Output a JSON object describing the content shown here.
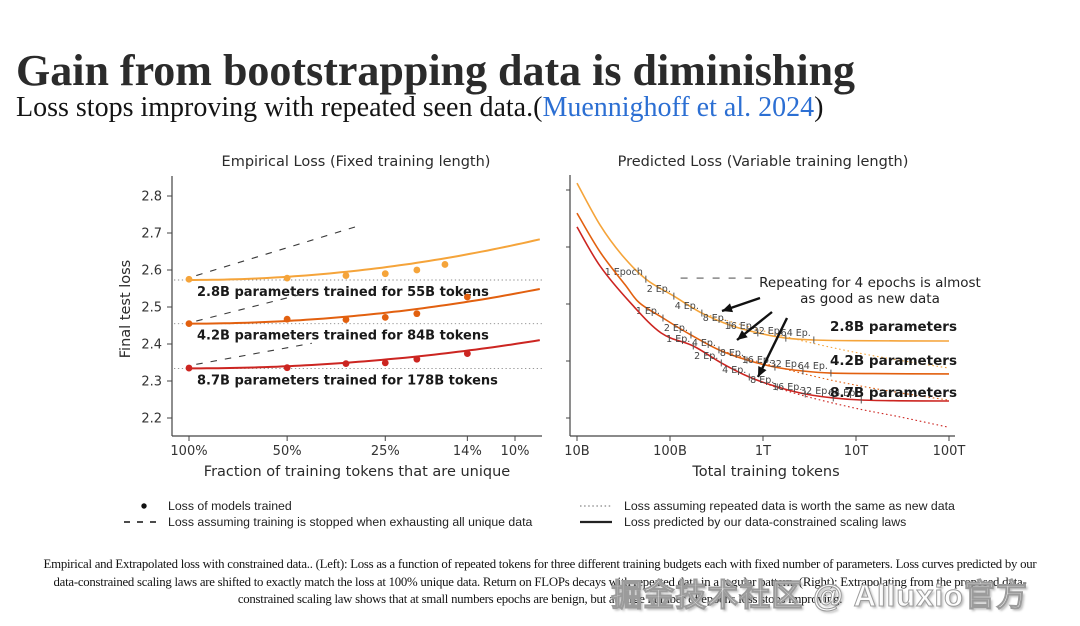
{
  "slide": {
    "title": "Gain from bootstrapping data is diminishing",
    "subtitle_prefix": "Loss stops improving with repeated seen data.(",
    "subtitle_link": "Muennighoff et al. 2024",
    "subtitle_suffix": ")",
    "link_color": "#2c6fd3"
  },
  "legend": {
    "items": [
      {
        "marker": "dot",
        "label": "Loss of models trained"
      },
      {
        "marker": "dashed",
        "label": "Loss assuming training is stopped when exhausting all unique data"
      },
      {
        "marker": "dotted",
        "label": "Loss assuming repeated data is worth the same as new data"
      },
      {
        "marker": "solid",
        "label": "Loss predicted by our data-constrained scaling laws"
      }
    ]
  },
  "caption": {
    "lines": [
      "Empirical and Extrapolated loss with constrained data.. (Left): Loss as a function of repeated tokens for three different training budgets each with fixed number of parameters. Loss curves predicted by our",
      "data-constrained scaling laws are shifted to exactly match the loss at 100% unique data. Return on FLOPs decays with repeated data in a regular pattern. (Right): Extrapolating from the proposed data-",
      "constrained scaling law shows that at small numbers epochs are benign, but at large number of epochs loss stops improving."
    ]
  },
  "watermark": "掘金技术社区 @ Alluxio官方",
  "chart_data": [
    {
      "type": "line",
      "title": "Empirical Loss (Fixed training length)",
      "xlabel": "Fraction of training tokens that are unique",
      "ylabel": "Final test loss",
      "x_scale": "log, reversed (100% -> ~8%)",
      "xlim": [
        100,
        8.4
      ],
      "ylim": [
        2.15,
        2.85
      ],
      "grid": false,
      "x_ticks": [
        {
          "label": "100%",
          "value": 100
        },
        {
          "label": "50%",
          "value": 50
        },
        {
          "label": "25%",
          "value": 25
        },
        {
          "label": "14%",
          "value": 14
        },
        {
          "label": "10%",
          "value": 10
        }
      ],
      "y_ticks": [
        2.2,
        2.3,
        2.4,
        2.5,
        2.6,
        2.7,
        2.8
      ],
      "series": [
        {
          "name": "2.8B",
          "annotation": "2.8B parameters trained for 55B tokens",
          "color": "#F5A43A",
          "baseline": 2.573,
          "curve_k": 0.095,
          "points": [
            [
              100,
              2.575
            ],
            [
              50,
              2.578
            ],
            [
              33,
              2.585
            ],
            [
              25,
              2.59
            ],
            [
              20,
              2.6
            ],
            [
              16.4,
              2.615
            ]
          ],
          "dashed_line": {
            "from": [
              95,
              2.585
            ],
            "to": [
              30,
              2.72
            ]
          }
        },
        {
          "name": "4.2B",
          "annotation": "4.2B parameters trained for 84B tokens",
          "color": "#E2600F",
          "baseline": 2.455,
          "curve_k": 0.081,
          "points": [
            [
              100,
              2.455
            ],
            [
              50,
              2.467
            ],
            [
              33,
              2.466
            ],
            [
              25,
              2.472
            ],
            [
              20,
              2.482
            ],
            [
              14,
              2.527
            ]
          ],
          "dashed_line": {
            "from": [
              95,
              2.462
            ],
            "to": [
              45,
              2.535
            ]
          }
        },
        {
          "name": "8.7B",
          "annotation": "8.7B parameters trained for 178B tokens",
          "color": "#CC2521",
          "baseline": 2.334,
          "curve_k": 0.066,
          "points": [
            [
              100,
              2.335
            ],
            [
              50,
              2.336
            ],
            [
              33,
              2.347
            ],
            [
              25,
              2.349
            ],
            [
              20,
              2.359
            ],
            [
              14,
              2.374
            ]
          ],
          "dashed_line": {
            "from": [
              95,
              2.345
            ],
            "to": [
              42,
              2.402
            ]
          }
        }
      ]
    },
    {
      "type": "line",
      "title": "Predicted Loss (Variable training length)",
      "xlabel": "Total training tokens",
      "x_scale": "log",
      "x_unit": "billions of tokens",
      "y_axis": "unlabeled; values below are relative height (0 = axis bottom, 1 = top)",
      "x_ticks": [
        {
          "label": "10B",
          "value": 10
        },
        {
          "label": "100B",
          "value": 100
        },
        {
          "label": "1T",
          "value": 1000
        },
        {
          "label": "10T",
          "value": 10000
        },
        {
          "label": "100T",
          "value": 100000
        }
      ],
      "annotation": {
        "lines": [
          "Repeating for 4 epochs is almost",
          "as good as new data"
        ]
      },
      "dashed_ref_line": {
        "from_tokens": 130,
        "to_tokens": 900,
        "y": 0.605
      },
      "series": [
        {
          "name": "2.8B parameters",
          "color": "#F5A43A",
          "unique_tokens": "55B",
          "label_y": 0.421,
          "curve": [
            [
              10,
              0.969
            ],
            [
              17.7,
              0.808
            ],
            [
              30.5,
              0.693
            ],
            [
              55,
              0.601
            ],
            [
              110,
              0.536
            ],
            [
              220,
              0.471
            ],
            [
              440,
              0.425
            ],
            [
              880,
              0.395
            ],
            [
              1760,
              0.375
            ],
            [
              3520,
              0.368
            ],
            [
              10000,
              0.365
            ],
            [
              100000,
              0.364
            ]
          ],
          "epoch_markers": [
            {
              "label": "1 Epoch",
              "tokens": 55,
              "y": 0.601
            },
            {
              "label": "2 Ep.",
              "tokens": 110,
              "y": 0.536
            },
            {
              "label": "4 Ep.",
              "tokens": 220,
              "y": 0.471
            },
            {
              "label": "8 Ep.",
              "tokens": 440,
              "y": 0.425
            },
            {
              "label": "16 Ep.",
              "tokens": 880,
              "y": 0.395
            },
            {
              "label": "32 Ep.",
              "tokens": 1760,
              "y": 0.375
            },
            {
              "label": "64 Ep.",
              "tokens": 3520,
              "y": 0.368
            }
          ],
          "dotted_extension": [
            [
              220,
              0.471
            ],
            [
              930,
              0.406
            ],
            [
              4100,
              0.349
            ],
            [
              18000,
              0.303
            ],
            [
              97000,
              0.261
            ]
          ]
        },
        {
          "name": "4.2B parameters",
          "color": "#E2600F",
          "unique_tokens": "84B",
          "label_y": 0.291,
          "curve": [
            [
              10,
              0.854
            ],
            [
              17.7,
              0.705
            ],
            [
              33,
              0.579
            ],
            [
              47,
              0.51
            ],
            [
              84,
              0.452
            ],
            [
              168,
              0.387
            ],
            [
              336,
              0.33
            ],
            [
              672,
              0.291
            ],
            [
              1344,
              0.264
            ],
            [
              2688,
              0.249
            ],
            [
              5376,
              0.241
            ],
            [
              15000,
              0.239
            ],
            [
              100000,
              0.238
            ]
          ],
          "epoch_markers": [
            {
              "label": "1 Ep.",
              "tokens": 84,
              "y": 0.452
            },
            {
              "label": "2 Ep.",
              "tokens": 168,
              "y": 0.387
            },
            {
              "label": "4 Ep.",
              "tokens": 336,
              "y": 0.33
            },
            {
              "label": "8 Ep.",
              "tokens": 672,
              "y": 0.291
            },
            {
              "label": "16 Ep.",
              "tokens": 1344,
              "y": 0.264
            },
            {
              "label": "32 Ep.",
              "tokens": 2688,
              "y": 0.249
            },
            {
              "label": "64 Ep.",
              "tokens": 5376,
              "y": 0.241
            }
          ],
          "dotted_extension": [
            [
              336,
              0.33
            ],
            [
              1190,
              0.272
            ],
            [
              5250,
              0.215
            ],
            [
              23000,
              0.172
            ],
            [
              97000,
              0.138
            ]
          ]
        },
        {
          "name": "8.7B parameters",
          "color": "#CC2521",
          "unique_tokens": "178B",
          "label_y": 0.169,
          "curve": [
            [
              10,
              0.801
            ],
            [
              17.7,
              0.651
            ],
            [
              37,
              0.513
            ],
            [
              80,
              0.395
            ],
            [
              178,
              0.345
            ],
            [
              356,
              0.28
            ],
            [
              712,
              0.226
            ],
            [
              1424,
              0.188
            ],
            [
              2848,
              0.161
            ],
            [
              5696,
              0.146
            ],
            [
              11392,
              0.138
            ],
            [
              30000,
              0.135
            ],
            [
              100000,
              0.134
            ]
          ],
          "epoch_markers": [
            {
              "label": "1 Ep.",
              "tokens": 178,
              "y": 0.345
            },
            {
              "label": "2 Ep.",
              "tokens": 356,
              "y": 0.28
            },
            {
              "label": "4 Ep.",
              "tokens": 712,
              "y": 0.226
            },
            {
              "label": "8 Ep.",
              "tokens": 1424,
              "y": 0.188
            },
            {
              "label": "16 Ep.",
              "tokens": 2848,
              "y": 0.161
            },
            {
              "label": "32 Ep.",
              "tokens": 5696,
              "y": 0.146
            },
            {
              "label": "64 Ep.",
              "tokens": 11392,
              "y": 0.138
            }
          ],
          "dotted_extension": [
            [
              712,
              0.226
            ],
            [
              1950,
              0.169
            ],
            [
              8600,
              0.111
            ],
            [
              29700,
              0.073
            ],
            [
              97000,
              0.034
            ]
          ]
        }
      ]
    }
  ]
}
